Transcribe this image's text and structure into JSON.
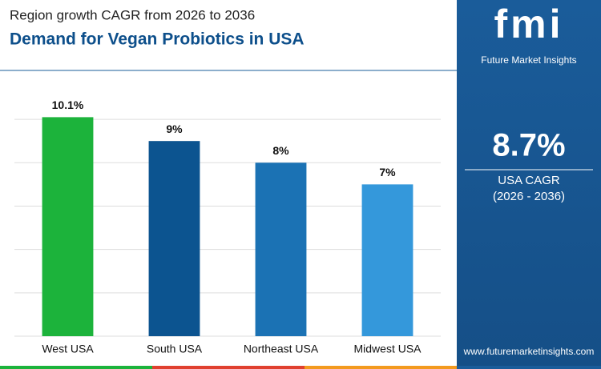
{
  "chart_data": {
    "type": "bar",
    "subtitle": "Region growth CAGR from 2026 to 2036",
    "title": "Demand for Vegan Probiotics in USA",
    "categories": [
      "West USA",
      "South USA",
      "Northeast USA",
      "Midwest USA"
    ],
    "values": [
      10.1,
      9,
      8,
      7
    ],
    "value_labels": [
      "10.1%",
      "9%",
      "8%",
      "7%"
    ],
    "colors": [
      "#1cb33b",
      "#0c5490",
      "#1b72b4",
      "#3498db"
    ],
    "ylim": [
      0,
      11
    ],
    "yticks": [
      0,
      2,
      4,
      6,
      8,
      10
    ],
    "grid": true
  },
  "sidebar": {
    "logo": "fmi",
    "brand": "Future Market Insights",
    "stat": "8.7%",
    "stat_label": "USA CAGR",
    "stat_period": "(2026 - 2036)",
    "website": "www.futuremarketinsights.com"
  }
}
